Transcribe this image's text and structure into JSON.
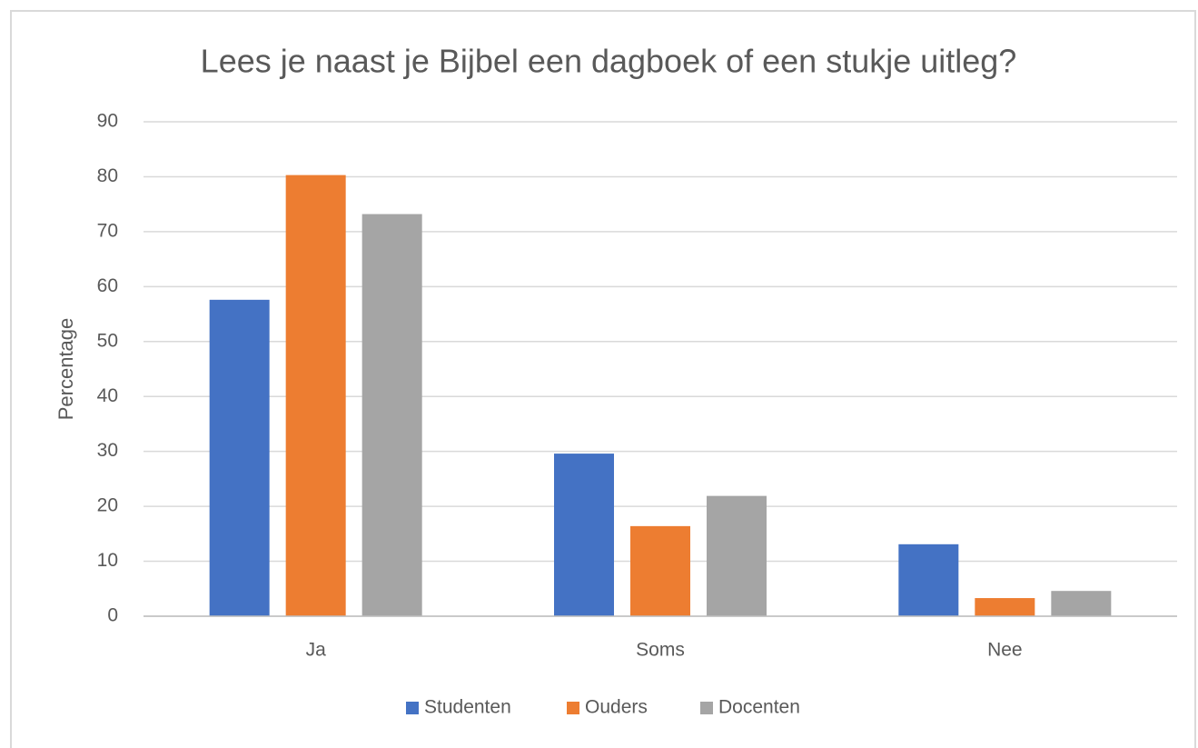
{
  "chart_data": {
    "type": "bar",
    "title": "Lees je naast je Bijbel een dagboek of een stukje uitleg?",
    "y_label": "Percentage",
    "categories": [
      "Ja",
      "Soms",
      "Nee"
    ],
    "series": [
      {
        "name": "Studenten",
        "color": "#4472c4",
        "values": [
          57.6,
          29.6,
          13.1
        ]
      },
      {
        "name": "Ouders",
        "color": "#ed7d31",
        "values": [
          80.3,
          16.4,
          3.3
        ]
      },
      {
        "name": "Docenten",
        "color": "#a5a5a5",
        "values": [
          73.2,
          21.9,
          4.6
        ]
      }
    ],
    "ylim": [
      0,
      90
    ],
    "yticks": [
      0,
      10,
      20,
      30,
      40,
      50,
      60,
      70,
      80,
      90
    ],
    "grid": true,
    "legend": "bottom"
  }
}
